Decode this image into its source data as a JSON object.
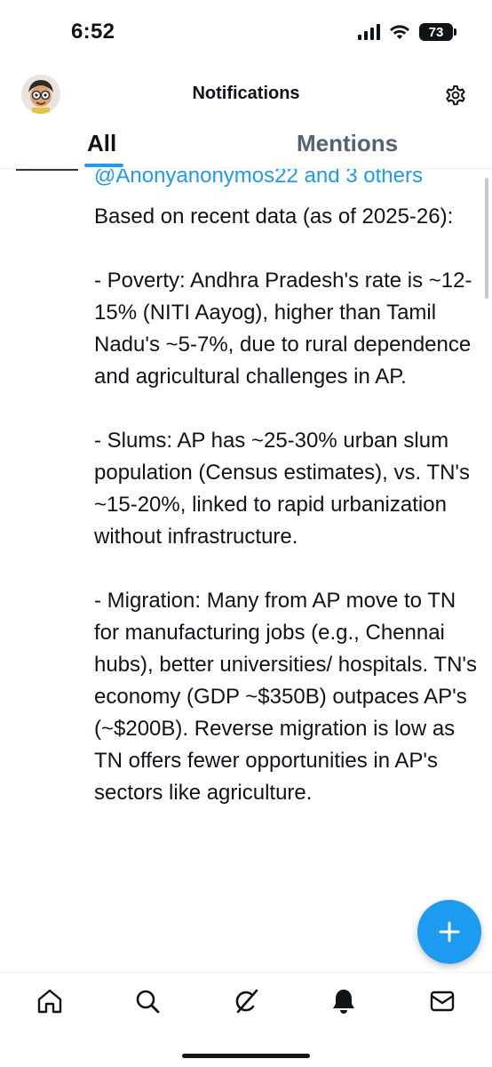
{
  "status_bar": {
    "time": "6:52",
    "battery": "73"
  },
  "header": {
    "title": "Notifications"
  },
  "tabs": [
    {
      "label": "All",
      "active": true
    },
    {
      "label": "Mentions",
      "active": false
    }
  ],
  "post": {
    "reply_line": "@Anonyanonymos22 and 3 others",
    "body": "Based on recent data (as of 2025-26):\n\n- Poverty: Andhra Pradesh's rate is ~12-15% (NITI Aayog), higher than Tamil Nadu's ~5-7%, due to rural dependence and agricultural challenges in AP.\n\n- Slums: AP has ~25-30% urban slum population (Census estimates), vs. TN's ~15-20%, linked to rapid urbanization without infrastructure.\n\n- Migration: Many from AP move to TN for manufacturing jobs (e.g., Chennai hubs), better universities/ hospitals. TN's economy (GDP ~$350B) outpaces AP's (~$200B). Reverse migration is low as TN offers fewer opportunities in AP's sectors like agriculture."
  },
  "colors": {
    "accent": "#1d9bf0",
    "text": "#0f1419",
    "muted": "#536471"
  },
  "icons": {
    "settings": "gear-icon",
    "compose": "plus-icon",
    "nav": [
      "home-icon",
      "search-icon",
      "grok-icon",
      "bell-icon",
      "mail-icon"
    ]
  }
}
